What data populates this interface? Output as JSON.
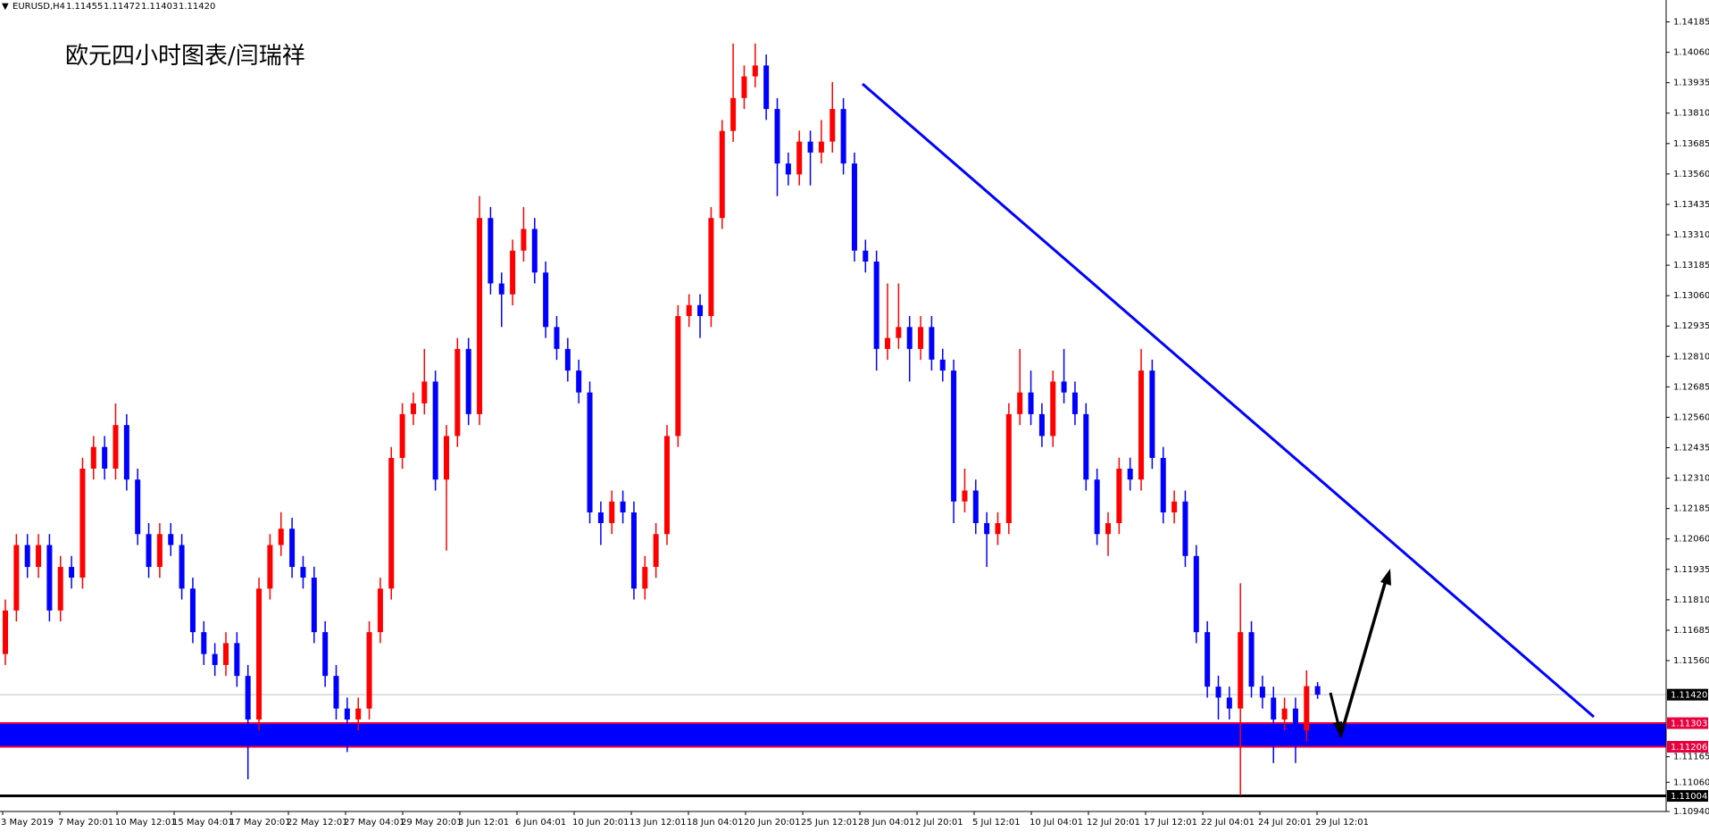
{
  "chart_data": {
    "type": "candlestick",
    "symbol": "EURUSD,H4",
    "quote": [
      "1.11455",
      "1.11472",
      "1.11403",
      "1.11420"
    ],
    "title": "欧元四小时图表/闫瑞祥",
    "up_color": "#ff0000",
    "down_color": "#0000ff",
    "band_color": "#0000ff",
    "ylim": [
      1.1094,
      1.14275
    ],
    "yticks": [
      1.14185,
      {
        "value": 1.1406,
        "label": "1.14060"
      },
      1.13935,
      {
        "value": 1.1381,
        "label": "1.13810"
      },
      1.13685,
      {
        "value": 1.1356,
        "label": "1.13560"
      },
      1.13435,
      {
        "value": 1.1331,
        "label": "1.13310"
      },
      1.13185,
      {
        "value": 1.1306,
        "label": "1.13060"
      },
      1.12935,
      {
        "value": 1.1281,
        "label": "1.12810"
      },
      1.12685,
      {
        "value": 1.1256,
        "label": "1.12560"
      },
      1.12435,
      {
        "value": 1.1231,
        "label": "1.12310"
      },
      1.12185,
      {
        "value": 1.1206,
        "label": "1.12060"
      },
      1.11935,
      {
        "value": 1.1181,
        "label": "1.11810"
      },
      1.11685,
      {
        "value": 1.1156,
        "label": "1.11560"
      },
      1.11165,
      {
        "value": 1.1106,
        "label": "1.11060"
      },
      {
        "value": 1.1094,
        "label": "1.10940"
      }
    ],
    "levels": [
      {
        "value": 1.11303,
        "label": "1.11303",
        "color": "#e8003d"
      },
      {
        "value": 1.11206,
        "label": "1.11206",
        "color": "#e8003d"
      },
      {
        "value": 1.1142,
        "label": "1.11420",
        "color": "#c0c0c0"
      },
      {
        "value": 1.11004,
        "label": "1.11004",
        "color": "#000000"
      }
    ],
    "xtick_labels": [
      "3 May 2019",
      "7 May 20:01",
      "10 May 12:01",
      "15 May 04:01",
      "17 May 20:01",
      "22 May 12:01",
      "27 May 04:01",
      "29 May 20:01",
      "3 Jun 12:01",
      "6 Jun 04:01",
      "10 Jun 20:01",
      "13 Jun 12:01",
      "18 Jun 04:01",
      "20 Jun 20:01",
      "25 Jun 12:01",
      "28 Jun 04:01",
      "2 Jul 20:01",
      "5 Jul 12:01",
      "10 Jul 04:01",
      "12 Jul 20:01",
      "17 Jul 12:01",
      "22 Jul 04:01",
      "24 Jul 20:01",
      "29 Jul 12:01"
    ],
    "open": [
      1.11587,
      1.11766,
      1.12035,
      1.11945,
      1.12035,
      1.11766,
      1.11945,
      1.11901,
      1.12349,
      1.12438,
      1.12349,
      1.12528,
      1.12304,
      1.1208,
      1.11945,
      1.1208,
      1.12035,
      1.11856,
      1.11677,
      1.11587,
      1.11542,
      1.11632,
      1.11497,
      1.11318,
      1.11856,
      1.12035,
      1.12102,
      1.11945,
      1.11901,
      1.11677,
      1.11497,
      1.11363,
      1.11318,
      1.11363,
      1.11677,
      1.11856,
      1.12393,
      1.12573,
      1.12617,
      1.12707,
      1.12304,
      1.12483,
      1.12841,
      1.12573,
      1.13379,
      1.1311,
      1.13065,
      1.13245,
      1.13334,
      1.13155,
      1.12931,
      1.12841,
      1.12752,
      1.12662,
      1.12169,
      1.12125,
      1.12214,
      1.12169,
      1.11856,
      1.11945,
      1.1208,
      1.12483,
      1.12976,
      1.13021,
      1.12976,
      1.13379,
      1.13737,
      1.13872,
      1.13961,
      1.14006,
      1.13827,
      1.13603,
      1.13558,
      1.13693,
      1.13648,
      1.13693,
      1.13827,
      1.13603,
      1.13245,
      1.132,
      1.12841,
      1.12886,
      1.12931,
      1.12841,
      1.12931,
      1.12797,
      1.12752,
      1.12214,
      1.12259,
      1.12125,
      1.1208,
      1.12125,
      1.12573,
      1.12662,
      1.12573,
      1.12483,
      1.12707,
      1.12662,
      1.12573,
      1.12304,
      1.1208,
      1.12125,
      1.12349,
      1.12304,
      1.12752,
      1.12393,
      1.12169,
      1.12214,
      1.1199,
      1.11677,
      1.11453,
      1.11408,
      1.11363,
      1.11677,
      1.11453,
      1.11408,
      1.11318,
      1.11363,
      1.11273,
      1.11455
    ],
    "high": [
      1.11811,
      1.1208,
      1.1208,
      1.1208,
      1.1208,
      1.1199,
      1.1199,
      1.12394,
      1.12483,
      1.12483,
      1.12617,
      1.12573,
      1.12349,
      1.12125,
      1.12125,
      1.12125,
      1.1208,
      1.11901,
      1.11722,
      1.11632,
      1.11677,
      1.11677,
      1.11542,
      1.11901,
      1.1208,
      1.1217,
      1.12147,
      1.1199,
      1.11946,
      1.11722,
      1.11542,
      1.11408,
      1.11408,
      1.11722,
      1.11901,
      1.12438,
      1.12618,
      1.12662,
      1.12841,
      1.12752,
      1.12528,
      1.12886,
      1.12886,
      1.13469,
      1.13424,
      1.13155,
      1.1329,
      1.13424,
      1.13379,
      1.132,
      1.12976,
      1.12886,
      1.12797,
      1.12707,
      1.12214,
      1.12259,
      1.12259,
      1.12214,
      1.1199,
      1.12125,
      1.12528,
      1.13021,
      1.13066,
      1.13066,
      1.13424,
      1.13782,
      1.14096,
      1.14006,
      1.14096,
      1.14051,
      1.13872,
      1.13648,
      1.13738,
      1.13738,
      1.13782,
      1.13938,
      1.13872,
      1.13648,
      1.1329,
      1.13245,
      1.1311,
      1.1311,
      1.12976,
      1.12976,
      1.12976,
      1.12842,
      1.12797,
      1.12349,
      1.12304,
      1.1217,
      1.1217,
      1.12618,
      1.12841,
      1.12752,
      1.12618,
      1.12752,
      1.12841,
      1.12707,
      1.12618,
      1.12349,
      1.1217,
      1.12394,
      1.12394,
      1.12841,
      1.12797,
      1.12438,
      1.12259,
      1.12259,
      1.12035,
      1.11722,
      1.11498,
      1.11453,
      1.11878,
      1.11722,
      1.11498,
      1.11453,
      1.11408,
      1.11408,
      1.1152,
      1.11472
    ],
    "low": [
      1.11542,
      1.11721,
      1.119,
      1.119,
      1.11721,
      1.11721,
      1.11856,
      1.11856,
      1.12304,
      1.12304,
      1.12304,
      1.12259,
      1.12035,
      1.119,
      1.119,
      1.1199,
      1.11811,
      1.11632,
      1.11542,
      1.11497,
      1.11497,
      1.11452,
      1.11072,
      1.11273,
      1.11811,
      1.1199,
      1.119,
      1.11856,
      1.11632,
      1.11452,
      1.11318,
      1.11184,
      1.11273,
      1.11318,
      1.11632,
      1.11811,
      1.12348,
      1.12528,
      1.12572,
      1.12259,
      1.12012,
      1.12438,
      1.12528,
      1.12528,
      1.13065,
      1.12931,
      1.1302,
      1.132,
      1.1311,
      1.12886,
      1.12796,
      1.12707,
      1.12617,
      1.12124,
      1.12035,
      1.1208,
      1.12124,
      1.11811,
      1.11811,
      1.119,
      1.12035,
      1.12438,
      1.12931,
      1.12886,
      1.12931,
      1.13334,
      1.13692,
      1.13827,
      1.13916,
      1.13782,
      1.13469,
      1.13513,
      1.13513,
      1.13513,
      1.13603,
      1.13648,
      1.13558,
      1.132,
      1.13155,
      1.12752,
      1.12796,
      1.12841,
      1.12707,
      1.12796,
      1.12752,
      1.12707,
      1.12125,
      1.12169,
      1.1208,
      1.11945,
      1.12035,
      1.1208,
      1.12528,
      1.12528,
      1.12438,
      1.12438,
      1.12617,
      1.12528,
      1.12259,
      1.12035,
      1.1199,
      1.1208,
      1.12259,
      1.12259,
      1.12348,
      1.12124,
      1.12124,
      1.11945,
      1.11632,
      1.11408,
      1.11318,
      1.11318,
      1.11005,
      1.11408,
      1.11363,
      1.11139,
      1.11273,
      1.11139,
      1.11228,
      1.11403
    ],
    "close": [
      1.11766,
      1.12035,
      1.11945,
      1.12035,
      1.11766,
      1.11945,
      1.11901,
      1.12349,
      1.12438,
      1.12349,
      1.12528,
      1.12304,
      1.1208,
      1.11945,
      1.1208,
      1.12035,
      1.11856,
      1.11677,
      1.11587,
      1.11542,
      1.11632,
      1.11497,
      1.11318,
      1.11856,
      1.12035,
      1.12102,
      1.11945,
      1.11901,
      1.11677,
      1.11497,
      1.11363,
      1.11318,
      1.11363,
      1.11677,
      1.11856,
      1.12393,
      1.12573,
      1.12617,
      1.12707,
      1.12304,
      1.12483,
      1.12841,
      1.12573,
      1.13379,
      1.1311,
      1.13065,
      1.13245,
      1.13334,
      1.13155,
      1.12931,
      1.12841,
      1.12752,
      1.12662,
      1.12169,
      1.12125,
      1.12214,
      1.12169,
      1.11856,
      1.11945,
      1.1208,
      1.12483,
      1.12976,
      1.13021,
      1.12976,
      1.13379,
      1.13737,
      1.13872,
      1.13961,
      1.14006,
      1.13827,
      1.13603,
      1.13558,
      1.13693,
      1.13648,
      1.13693,
      1.13827,
      1.13603,
      1.13245,
      1.132,
      1.12841,
      1.12886,
      1.12931,
      1.12841,
      1.12931,
      1.12797,
      1.12752,
      1.12214,
      1.12259,
      1.12125,
      1.1208,
      1.12125,
      1.12573,
      1.12662,
      1.12573,
      1.12483,
      1.12707,
      1.12662,
      1.12573,
      1.12304,
      1.1208,
      1.12125,
      1.12349,
      1.12304,
      1.12752,
      1.12393,
      1.12169,
      1.12214,
      1.1199,
      1.11677,
      1.11453,
      1.11408,
      1.11363,
      1.11677,
      1.11453,
      1.11408,
      1.11318,
      1.11363,
      1.11273,
      1.11455,
      1.1142
    ]
  }
}
